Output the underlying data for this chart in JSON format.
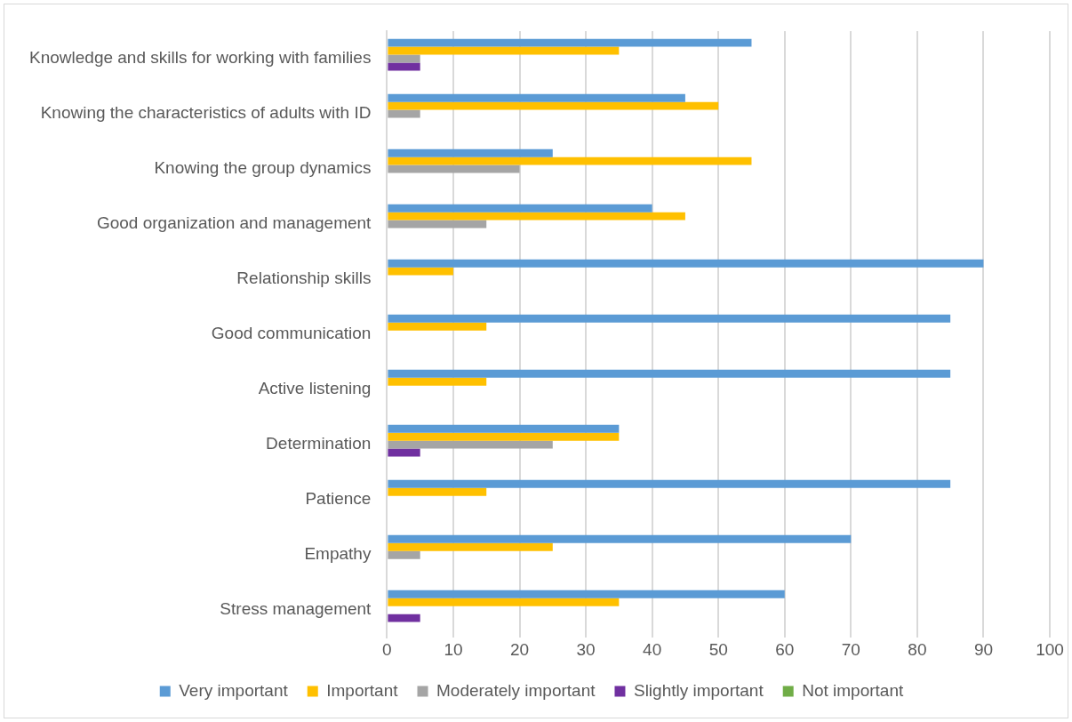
{
  "chart_data": {
    "type": "bar",
    "orientation": "horizontal",
    "categories": [
      "Knowledge and skills for working with families",
      "Knowing the characteristics of adults with ID",
      "Knowing the group dynamics",
      "Good organization and management",
      "Relationship skills",
      "Good communication",
      "Active listening",
      "Determination",
      "Patience",
      "Empathy",
      "Stress management"
    ],
    "series": [
      {
        "name": "Very important",
        "color": "#5b9bd5",
        "values": [
          55,
          45,
          25,
          40,
          90,
          85,
          85,
          35,
          85,
          70,
          60
        ]
      },
      {
        "name": "Important",
        "color": "#ffc000",
        "values": [
          35,
          50,
          55,
          45,
          10,
          15,
          15,
          35,
          15,
          25,
          35
        ]
      },
      {
        "name": "Moderately important",
        "color": "#a5a5a5",
        "values": [
          5,
          5,
          20,
          15,
          0,
          0,
          0,
          25,
          0,
          5,
          0
        ]
      },
      {
        "name": "Slightly important",
        "color": "#7030a0",
        "values": [
          5,
          0,
          0,
          0,
          0,
          0,
          0,
          5,
          0,
          0,
          5
        ]
      },
      {
        "name": "Not important",
        "color": "#70ad47",
        "values": [
          0,
          0,
          0,
          0,
          0,
          0,
          0,
          0,
          0,
          0,
          0
        ]
      }
    ],
    "xlim": [
      0,
      100
    ],
    "xticks": [
      0,
      10,
      20,
      30,
      40,
      50,
      60,
      70,
      80,
      90,
      100
    ],
    "grid": "x",
    "legend": "bottom"
  }
}
